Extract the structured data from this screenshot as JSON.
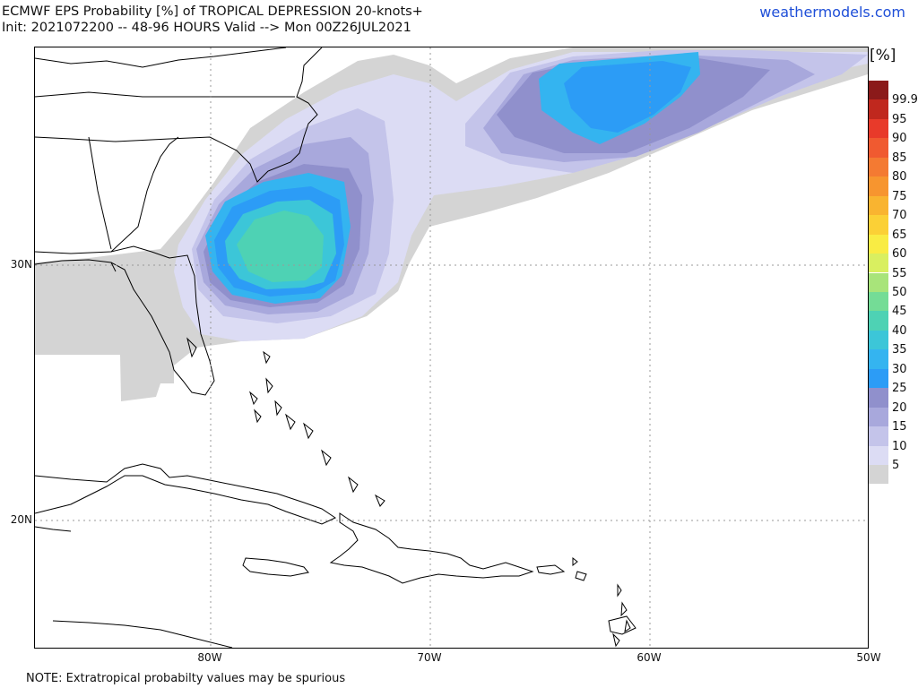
{
  "header": {
    "title": "ECMWF EPS Probability [%] of TROPICAL DEPRESSION 20-knots+",
    "subtitle": "Init: 2021072200 -- 48-96 HOURS Valid --> Mon 00Z26JUL2021",
    "site": "weathermodels.com"
  },
  "map": {
    "lat_labels": [
      "30N",
      "20N"
    ],
    "lon_labels": [
      "80W",
      "70W",
      "60W",
      "50W"
    ]
  },
  "legend": {
    "unit": "[%]",
    "levels": [
      "99.9",
      "95",
      "90",
      "85",
      "80",
      "75",
      "70",
      "65",
      "60",
      "55",
      "50",
      "45",
      "40",
      "35",
      "30",
      "25",
      "20",
      "15",
      "10",
      "5"
    ],
    "colors": [
      "#8b1a1a",
      "#c0281e",
      "#e83a2a",
      "#f05a30",
      "#f47a32",
      "#f7952f",
      "#f9b430",
      "#fbd036",
      "#f9ec44",
      "#d9ef60",
      "#a8e47a",
      "#74dc96",
      "#4ed2b4",
      "#3cc6d8",
      "#34b4f0",
      "#2c9cf6",
      "#9090cc",
      "#a8a8dc",
      "#c4c4ea",
      "#dcdcf4",
      "#d4d4d4"
    ]
  },
  "footnote": "NOTE: Extratropical probabilty values may be spurious"
}
